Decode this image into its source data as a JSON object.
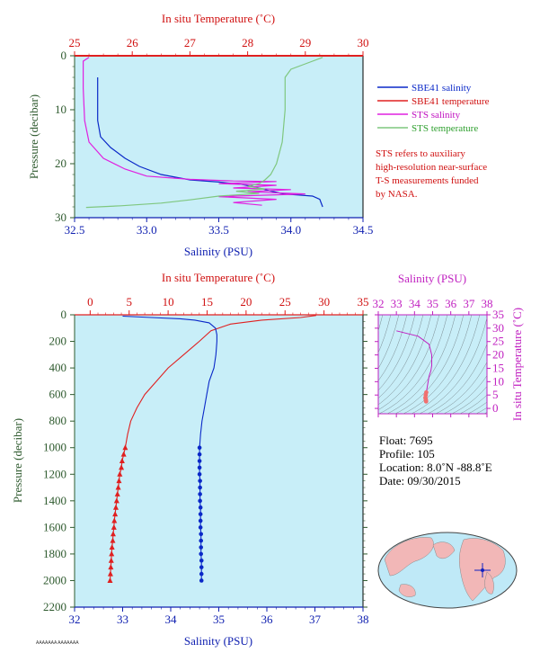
{
  "chart_data": [
    {
      "type": "line",
      "panel": "top",
      "xlabel_bottom": "Salinity (PSU)",
      "xlabel_top": "In situ Temperature (˚C)",
      "ylabel": "Pressure (decibar)",
      "salinity_range": [
        32.5,
        34.5
      ],
      "temperature_range": [
        25,
        30
      ],
      "pressure_range": [
        0,
        30
      ],
      "salinity_ticks": [
        "32.5",
        "33.0",
        "33.5",
        "34.0",
        "34.5"
      ],
      "temperature_ticks": [
        "25",
        "26",
        "27",
        "28",
        "29",
        "30"
      ],
      "pressure_ticks": [
        "0",
        "10",
        "20",
        "30"
      ],
      "legend": [
        {
          "name": "SBE41 salinity",
          "color": "#0a28c8"
        },
        {
          "name": "SBE41 temperature",
          "color": "#e02020"
        },
        {
          "name": "STS salinity",
          "color": "#e020e0"
        },
        {
          "name": "STS temperature",
          "color": "#7fc77f"
        }
      ],
      "note": [
        "STS refers to auxiliary",
        "high-resolution near-surface",
        "T-S measurements funded",
        "by NASA."
      ],
      "series": [
        {
          "name": "SBE41 salinity",
          "axis": "salinity",
          "points": [
            [
              32.66,
              4
            ],
            [
              32.66,
              12
            ],
            [
              32.68,
              15
            ],
            [
              32.75,
              17
            ],
            [
              32.85,
              19
            ],
            [
              32.95,
              20.5
            ],
            [
              33.1,
              22
            ],
            [
              33.3,
              23
            ],
            [
              33.5,
              23.4
            ],
            [
              33.65,
              23.8
            ],
            [
              33.75,
              24.3
            ],
            [
              33.85,
              25
            ],
            [
              33.95,
              25.6
            ],
            [
              34.05,
              25.8
            ],
            [
              34.15,
              26
            ],
            [
              34.2,
              26.6
            ],
            [
              34.22,
              28
            ]
          ]
        },
        {
          "name": "SBE41 temperature",
          "axis": "temperature",
          "points": [
            [
              25,
              0
            ],
            [
              30,
              0
            ]
          ]
        },
        {
          "name": "STS salinity",
          "axis": "salinity",
          "points": [
            [
              32.6,
              0.3
            ],
            [
              32.56,
              1
            ],
            [
              32.56,
              6
            ],
            [
              32.57,
              12
            ],
            [
              32.6,
              16
            ],
            [
              32.7,
              19
            ],
            [
              32.85,
              21
            ],
            [
              33.0,
              22.3
            ],
            [
              33.3,
              22.9
            ],
            [
              33.6,
              23.2
            ],
            [
              33.9,
              23.3
            ],
            [
              33.5,
              23.7
            ],
            [
              33.9,
              24
            ],
            [
              33.6,
              24.5
            ],
            [
              34.0,
              24.8
            ],
            [
              33.7,
              25.2
            ],
            [
              34.1,
              25.6
            ],
            [
              33.5,
              26.1
            ],
            [
              33.9,
              26.6
            ],
            [
              33.6,
              27.2
            ],
            [
              33.8,
              27.7
            ]
          ]
        },
        {
          "name": "STS temperature",
          "axis": "temperature",
          "points": [
            [
              29.3,
              0.3
            ],
            [
              29.0,
              1.5
            ],
            [
              28.75,
              2.5
            ],
            [
              28.65,
              4
            ],
            [
              28.65,
              10
            ],
            [
              28.6,
              16
            ],
            [
              28.5,
              20
            ],
            [
              28.4,
              22
            ],
            [
              28.3,
              23
            ],
            [
              28.2,
              23.7
            ],
            [
              28.0,
              24.2
            ],
            [
              28.3,
              24.7
            ],
            [
              27.8,
              25.1
            ],
            [
              28.2,
              25.5
            ],
            [
              27.5,
              26
            ],
            [
              27.0,
              26.7
            ],
            [
              26.5,
              27.3
            ],
            [
              25.8,
              27.8
            ],
            [
              25.2,
              28.1
            ]
          ]
        }
      ]
    },
    {
      "type": "line",
      "panel": "bottom",
      "xlabel_bottom": "Salinity (PSU)",
      "xlabel_top": "In situ Temperature (˚C)",
      "ylabel": "Pressure (decibar)",
      "salinity_range": [
        32,
        38
      ],
      "temperature_range": [
        -2,
        35
      ],
      "pressure_range": [
        0,
        2200
      ],
      "salinity_ticks": [
        "32",
        "33",
        "34",
        "35",
        "36",
        "37",
        "38"
      ],
      "temperature_ticks": [
        "0",
        "5",
        "10",
        "15",
        "20",
        "25",
        "30",
        "35"
      ],
      "pressure_ticks": [
        "0",
        "200",
        "400",
        "600",
        "800",
        "1000",
        "1200",
        "1400",
        "1600",
        "1800",
        "2000",
        "2200"
      ],
      "salinity_series": {
        "name": "SBE41 salinity",
        "color": "#0a28c8",
        "points": [
          [
            33.0,
            10
          ],
          [
            33.6,
            20
          ],
          [
            34.2,
            30
          ],
          [
            34.5,
            40
          ],
          [
            34.8,
            60
          ],
          [
            34.93,
            100
          ],
          [
            34.96,
            150
          ],
          [
            34.96,
            200
          ],
          [
            34.94,
            300
          ],
          [
            34.9,
            400
          ],
          [
            34.8,
            500
          ],
          [
            34.75,
            600
          ],
          [
            34.7,
            700
          ],
          [
            34.65,
            800
          ],
          [
            34.62,
            900
          ],
          [
            34.6,
            1000
          ],
          [
            34.6,
            1050
          ],
          [
            34.6,
            1100
          ],
          [
            34.6,
            1150
          ],
          [
            34.6,
            1200
          ],
          [
            34.61,
            1250
          ],
          [
            34.61,
            1300
          ],
          [
            34.61,
            1350
          ],
          [
            34.61,
            1400
          ],
          [
            34.62,
            1450
          ],
          [
            34.62,
            1500
          ],
          [
            34.62,
            1550
          ],
          [
            34.62,
            1600
          ],
          [
            34.63,
            1650
          ],
          [
            34.63,
            1700
          ],
          [
            34.63,
            1750
          ],
          [
            34.63,
            1800
          ],
          [
            34.64,
            1850
          ],
          [
            34.64,
            1900
          ],
          [
            34.64,
            1950
          ],
          [
            34.64,
            2000
          ]
        ]
      },
      "temperature_series": {
        "name": "SBE41 temperature",
        "color": "#e02020",
        "points": [
          [
            29.0,
            5
          ],
          [
            27.0,
            20
          ],
          [
            22.0,
            40
          ],
          [
            18.0,
            70
          ],
          [
            15.5,
            120
          ],
          [
            14.0,
            200
          ],
          [
            12.0,
            300
          ],
          [
            10.0,
            400
          ],
          [
            8.5,
            500
          ],
          [
            7.0,
            600
          ],
          [
            6.0,
            700
          ],
          [
            5.2,
            800
          ],
          [
            4.8,
            900
          ],
          [
            4.5,
            1000
          ],
          [
            4.3,
            1050
          ],
          [
            4.1,
            1100
          ],
          [
            4.0,
            1150
          ],
          [
            3.8,
            1200
          ],
          [
            3.7,
            1250
          ],
          [
            3.6,
            1300
          ],
          [
            3.5,
            1350
          ],
          [
            3.4,
            1400
          ],
          [
            3.3,
            1450
          ],
          [
            3.2,
            1500
          ],
          [
            3.1,
            1550
          ],
          [
            3.05,
            1600
          ],
          [
            2.95,
            1650
          ],
          [
            2.9,
            1700
          ],
          [
            2.8,
            1750
          ],
          [
            2.75,
            1800
          ],
          [
            2.7,
            1850
          ],
          [
            2.65,
            1900
          ],
          [
            2.6,
            1950
          ],
          [
            2.55,
            2000
          ]
        ]
      }
    },
    {
      "type": "scatter",
      "panel": "ts-inset",
      "xlabel_top": "Salinity (PSU)",
      "ylabel_right": "In situ Temperature (˚C)",
      "salinity_range": [
        32,
        38
      ],
      "temperature_range": [
        -2,
        35
      ],
      "salinity_ticks": [
        "32",
        "33",
        "34",
        "35",
        "36",
        "37",
        "38"
      ],
      "temperature_ticks": [
        "0",
        "5",
        "10",
        "15",
        "20",
        "25",
        "30",
        "35"
      ],
      "points": [
        [
          33.0,
          29
        ],
        [
          34.2,
          27
        ],
        [
          34.8,
          24
        ],
        [
          34.95,
          20
        ],
        [
          34.95,
          16
        ],
        [
          34.9,
          14
        ],
        [
          34.8,
          12
        ],
        [
          34.75,
          10
        ],
        [
          34.7,
          8
        ],
        [
          34.65,
          6
        ],
        [
          34.62,
          5
        ],
        [
          34.6,
          4
        ],
        [
          34.62,
          3.5
        ],
        [
          34.63,
          3
        ],
        [
          34.64,
          2.6
        ]
      ]
    }
  ],
  "float_info": {
    "float": "Float:  7695",
    "profile": "Profile:  105",
    "location": "Location:  8.0˚N  -88.8˚E",
    "date": "Date:  09/30/2015"
  },
  "footer": "AAAAAAA AAAAAAA",
  "colors": {
    "salinity": "#0a28c8",
    "temperature": "#e02020",
    "pressure": "#2e5a2e",
    "plot_bg": "#c8eef8",
    "ts": "#c020c0"
  },
  "map": {
    "icon": "world-map-icon"
  }
}
